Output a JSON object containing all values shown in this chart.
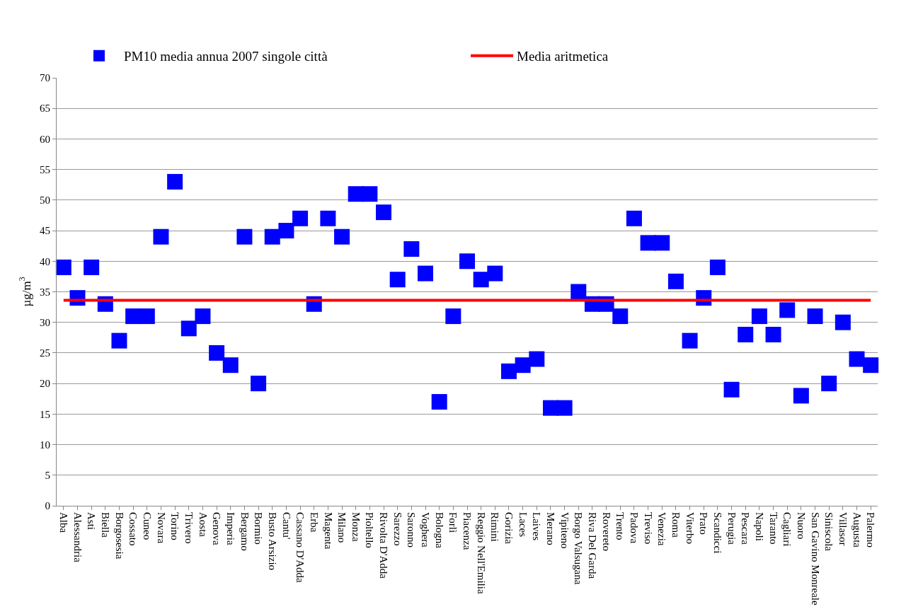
{
  "chart_data": {
    "type": "scatter",
    "ylabel": "µg/m$^{3}$",
    "categories": [
      "Alba",
      "Alessandria",
      "Asti",
      "Biella",
      "Borgosesia",
      "Cossato",
      "Cuneo",
      "Novara",
      "Torino",
      "Trivero",
      "Aosta",
      "Genova",
      "Imperia",
      "Bergamo",
      "Bormio",
      "Busto Arsizio",
      "Cantu'",
      "Cassano D'Adda",
      "Erba",
      "Magenta",
      "Milano",
      "Monza",
      "Pioltello",
      "Rivolta D'Adda",
      "Sarezzo",
      "Saronno",
      "Voghera",
      "Bologna",
      "Forlì",
      "Piacenza",
      "Reggio Nell'Emilia",
      "Rimini",
      "Gorizia",
      "Laces",
      "Laives",
      "Merano",
      "Vipiteno",
      "Borgo Valsugana",
      "Riva Del Garda",
      "Rovereto",
      "Trento",
      "Padova",
      "Treviso",
      "Venezia",
      "Roma",
      "Viterbo",
      "Prato",
      "Scandicci",
      "Perugia",
      "Pescara",
      "Napoli",
      "Taranto",
      "Cagliari",
      "Nuoro",
      "San Gavino Monreale",
      "Siniscola",
      "Villasor",
      "Augusta",
      "Palermo"
    ],
    "series": [
      {
        "name": "PM10 media annua 2007 singole città",
        "marker": "square",
        "color": "#0000ff",
        "values": [
          39,
          34,
          39,
          33,
          27,
          31,
          31,
          44,
          53,
          29,
          31,
          25,
          23,
          44,
          20,
          44,
          45,
          47,
          33,
          47,
          44,
          51,
          51,
          48,
          37,
          42,
          38,
          17,
          31,
          40,
          37,
          38,
          22,
          23,
          24,
          16,
          16,
          35,
          33,
          33,
          31,
          47,
          43,
          43,
          36.7,
          27,
          34,
          39,
          19,
          28,
          31,
          28,
          32,
          18,
          31,
          20,
          30,
          24,
          23
        ]
      },
      {
        "name": "Media aritmetica",
        "type": "line",
        "marker": "none",
        "color": "#ff0000",
        "values": [
          33.6,
          33.6,
          33.6,
          33.6,
          33.6,
          33.6,
          33.6,
          33.6,
          33.6,
          33.6,
          33.6,
          33.6,
          33.6,
          33.6,
          33.6,
          33.6,
          33.6,
          33.6,
          33.6,
          33.6,
          33.6,
          33.6,
          33.6,
          33.6,
          33.6,
          33.6,
          33.6,
          33.6,
          33.6,
          33.6,
          33.6,
          33.6,
          33.6,
          33.6,
          33.6,
          33.6,
          33.6,
          33.6,
          33.6,
          33.6,
          33.6,
          33.6,
          33.6,
          33.6,
          33.6,
          33.6,
          33.6,
          33.6,
          33.6,
          33.6,
          33.6,
          33.6,
          33.6,
          33.6,
          33.6,
          33.6,
          33.6,
          33.6,
          33.6
        ]
      }
    ],
    "ylim": [
      0,
      70
    ],
    "yticks": [
      0,
      5,
      10,
      15,
      20,
      25,
      30,
      35,
      40,
      45,
      50,
      55,
      60,
      65,
      70
    ],
    "grid": "y",
    "legend": "top"
  }
}
